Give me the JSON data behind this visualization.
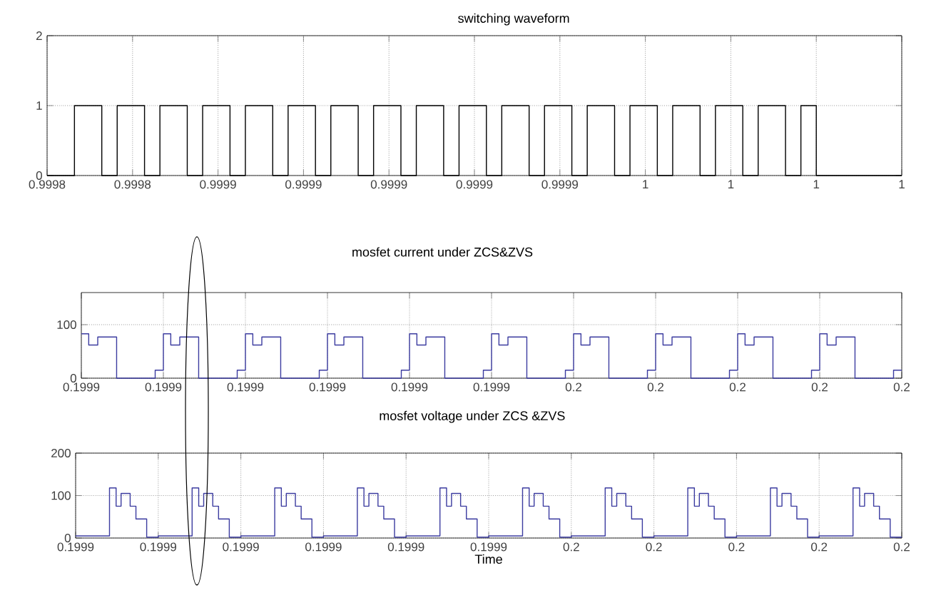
{
  "chart_data": [
    {
      "type": "step",
      "title": "switching waveform",
      "color": "#000000",
      "grid": true,
      "xlim": [
        0.99982,
        1.00002
      ],
      "xticks": [
        {
          "value": 0.99982,
          "label": "0.9998"
        },
        {
          "value": 0.99984,
          "label": "0.9998"
        },
        {
          "value": 0.99986,
          "label": "0.9999"
        },
        {
          "value": 0.99988,
          "label": "0.9999"
        },
        {
          "value": 0.9999,
          "label": "0.9999"
        },
        {
          "value": 0.99992,
          "label": "0.9999"
        },
        {
          "value": 0.99994,
          "label": "0.9999"
        },
        {
          "value": 0.99996,
          "label": "1"
        },
        {
          "value": 0.99998,
          "label": "1"
        },
        {
          "value": 1.0,
          "label": "1"
        },
        {
          "value": 1.00002,
          "label": "1"
        }
      ],
      "ylim": [
        0,
        2
      ],
      "yticks": [
        0,
        1,
        2
      ],
      "x": [
        0.99982,
        0.9998264,
        0.9998328,
        0.9998364,
        0.9998428,
        0.9998464,
        0.9998528,
        0.9998564,
        0.9998628,
        0.9998664,
        0.9998728,
        0.9998764,
        0.9998828,
        0.9998864,
        0.9998928,
        0.9998964,
        0.9999028,
        0.9999064,
        0.9999128,
        0.9999164,
        0.9999228,
        0.9999264,
        0.9999328,
        0.9999364,
        0.9999428,
        0.9999464,
        0.9999528,
        0.9999564,
        0.9999628,
        0.9999664,
        0.9999728,
        0.9999764,
        0.9999828,
        0.9999864,
        0.9999928,
        0.9999964,
        1.0,
        1.00002
      ],
      "values": [
        0,
        1,
        0,
        1,
        0,
        1,
        0,
        1,
        0,
        1,
        0,
        1,
        0,
        1,
        0,
        1,
        0,
        1,
        0,
        1,
        0,
        1,
        0,
        1,
        0,
        1,
        0,
        1,
        0,
        1,
        0,
        1,
        0,
        1,
        0,
        1,
        0,
        0
      ]
    },
    {
      "type": "step",
      "title": "mosfet current under ZCS&ZVS",
      "color": "#3c3ca0",
      "grid": true,
      "xlim": [
        0.199895,
        0.199995
      ],
      "xticks": [
        {
          "value": 0.199895,
          "label": "0.1999"
        },
        {
          "value": 0.199905,
          "label": "0.1999"
        },
        {
          "value": 0.199915,
          "label": "0.1999"
        },
        {
          "value": 0.199925,
          "label": "0.1999"
        },
        {
          "value": 0.199935,
          "label": "0.1999"
        },
        {
          "value": 0.199945,
          "label": "0.1999"
        },
        {
          "value": 0.199955,
          "label": "0.2"
        },
        {
          "value": 0.199965,
          "label": "0.2"
        },
        {
          "value": 0.199975,
          "label": "0.2"
        },
        {
          "value": 0.199985,
          "label": "0.2"
        },
        {
          "value": 0.199995,
          "label": "0.2"
        }
      ],
      "ylim": [
        0,
        160
      ],
      "yticks": [
        0,
        100
      ],
      "x": [
        0.199895,
        0.1998959,
        0.199897,
        0.1998993,
        0.199904,
        0.199905,
        0.1999059,
        0.199907,
        0.1999093,
        0.199914,
        0.199915,
        0.1999159,
        0.199917,
        0.1999193,
        0.199924,
        0.199925,
        0.1999259,
        0.199927,
        0.1999293,
        0.199934,
        0.199935,
        0.1999359,
        0.199937,
        0.1999393,
        0.199944,
        0.199945,
        0.1999459,
        0.199947,
        0.1999493,
        0.199954,
        0.199955,
        0.1999559,
        0.199957,
        0.1999593,
        0.199964,
        0.199965,
        0.1999659,
        0.199967,
        0.1999693,
        0.199974,
        0.199975,
        0.1999759,
        0.199977,
        0.1999793,
        0.199984,
        0.199985,
        0.1999859,
        0.199987,
        0.1999893,
        0.199994,
        0.199995
      ],
      "values": [
        83,
        62,
        77,
        0,
        15,
        83,
        62,
        77,
        0,
        15,
        83,
        62,
        77,
        0,
        15,
        83,
        62,
        77,
        0,
        15,
        83,
        62,
        77,
        0,
        15,
        83,
        62,
        77,
        0,
        15,
        83,
        62,
        77,
        0,
        15,
        83,
        62,
        77,
        0,
        15,
        83,
        62,
        77,
        0,
        15,
        83,
        62,
        77,
        0,
        15,
        15
      ]
    },
    {
      "type": "step",
      "title": "mosfet voltage under ZCS &ZVS",
      "xlabel": "Time",
      "color": "#3c3ca0",
      "grid": true,
      "xlim": [
        0.199895,
        0.199995
      ],
      "xticks": [
        {
          "value": 0.199895,
          "label": "0.1999"
        },
        {
          "value": 0.199905,
          "label": "0.1999"
        },
        {
          "value": 0.199915,
          "label": "0.1999"
        },
        {
          "value": 0.199925,
          "label": "0.1999"
        },
        {
          "value": 0.199935,
          "label": "0.1999"
        },
        {
          "value": 0.199945,
          "label": "0.1999"
        },
        {
          "value": 0.199955,
          "label": "0.2"
        },
        {
          "value": 0.199965,
          "label": "0.2"
        },
        {
          "value": 0.199975,
          "label": "0.2"
        },
        {
          "value": 0.199985,
          "label": "0.2"
        },
        {
          "value": 0.199995,
          "label": "0.2"
        }
      ],
      "ylim": [
        0,
        200
      ],
      "yticks": [
        0,
        100,
        200
      ],
      "x": [
        0.199895,
        0.1998991,
        0.1998999,
        0.1999005,
        0.1999016,
        0.1999023,
        0.1999036,
        0.199905,
        0.1999091,
        0.1999099,
        0.1999105,
        0.1999116,
        0.1999123,
        0.1999136,
        0.199915,
        0.1999191,
        0.1999199,
        0.1999205,
        0.1999216,
        0.1999223,
        0.1999236,
        0.199925,
        0.1999291,
        0.1999299,
        0.1999305,
        0.1999316,
        0.1999323,
        0.1999336,
        0.199935,
        0.1999391,
        0.1999399,
        0.1999405,
        0.1999416,
        0.1999423,
        0.1999436,
        0.199945,
        0.1999491,
        0.1999499,
        0.1999505,
        0.1999516,
        0.1999523,
        0.1999536,
        0.199955,
        0.1999591,
        0.1999599,
        0.1999605,
        0.1999616,
        0.1999623,
        0.1999636,
        0.199965,
        0.1999691,
        0.1999699,
        0.1999705,
        0.1999716,
        0.1999723,
        0.1999736,
        0.199975,
        0.1999791,
        0.1999799,
        0.1999805,
        0.1999816,
        0.1999823,
        0.1999836,
        0.199985,
        0.1999891,
        0.1999899,
        0.1999905,
        0.1999916,
        0.1999923,
        0.1999936,
        0.199995
      ],
      "values": [
        5,
        118,
        75,
        105,
        75,
        45,
        2,
        5,
        118,
        75,
        105,
        75,
        45,
        2,
        5,
        118,
        75,
        105,
        75,
        45,
        2,
        5,
        118,
        75,
        105,
        75,
        45,
        2,
        5,
        118,
        75,
        105,
        75,
        45,
        2,
        5,
        118,
        75,
        105,
        75,
        45,
        2,
        5,
        118,
        75,
        105,
        75,
        45,
        2,
        5,
        118,
        75,
        105,
        75,
        45,
        2,
        5,
        118,
        75,
        105,
        75,
        45,
        2,
        5,
        118,
        75,
        105,
        75,
        45,
        2,
        2
      ]
    }
  ]
}
